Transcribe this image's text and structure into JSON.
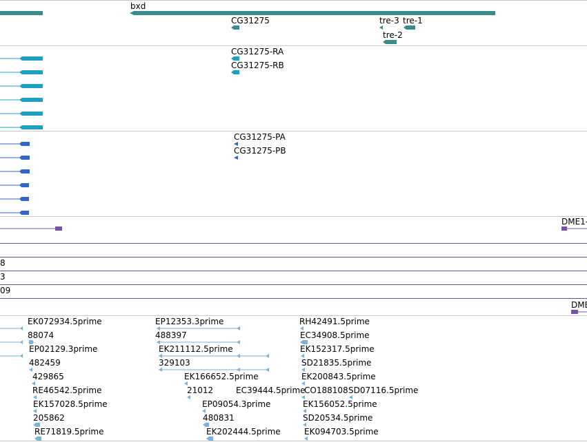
{
  "colors": {
    "gene": "#3a8c8c",
    "transcript": "#1ea0c2",
    "protein": "#3366cc",
    "repeat": "#7850b0",
    "est": "#7ab2d8",
    "track_separator": "#c8c8c8",
    "band_line": "#6a4ca0"
  },
  "tracks": {
    "genes": {
      "labels": [
        "bxd",
        "CG31275",
        "tre-3",
        "tre-1",
        "tre-2"
      ]
    },
    "transcripts": {
      "labels": [
        "CG31275-RA",
        "CG31275-RB"
      ]
    },
    "proteins": {
      "labels": [
        "CG31275-PA",
        "CG31275-PB"
      ]
    },
    "repeats": {
      "label": "DME1-"
    },
    "band_labels": [
      "8",
      "3",
      "09"
    ],
    "ests": {
      "dme_label": "DME",
      "labels": [
        "EK072934.5prime",
        "88074",
        "EP02129.3prime",
        "482459",
        "429865",
        "RE46542.5prime",
        "EK157028.5prime",
        "205862",
        "RE71819.5prime",
        "EP12353.3prime",
        "488397",
        "EK211112.5prime",
        "329103",
        "EK166652.5prime",
        "21012",
        "EC39444.5prime",
        "EP09054.3prime",
        "480831",
        "EK202444.5prime",
        "RH42491.5prime",
        "EC34908.5prime",
        "EK152317.5prime",
        "SD21835.5prime",
        "EK200843.5prime",
        "CO188108",
        "SD07116.5prime",
        "EK156052.5prime",
        "SD20534.5prime",
        "EK094703.5prime"
      ]
    }
  }
}
